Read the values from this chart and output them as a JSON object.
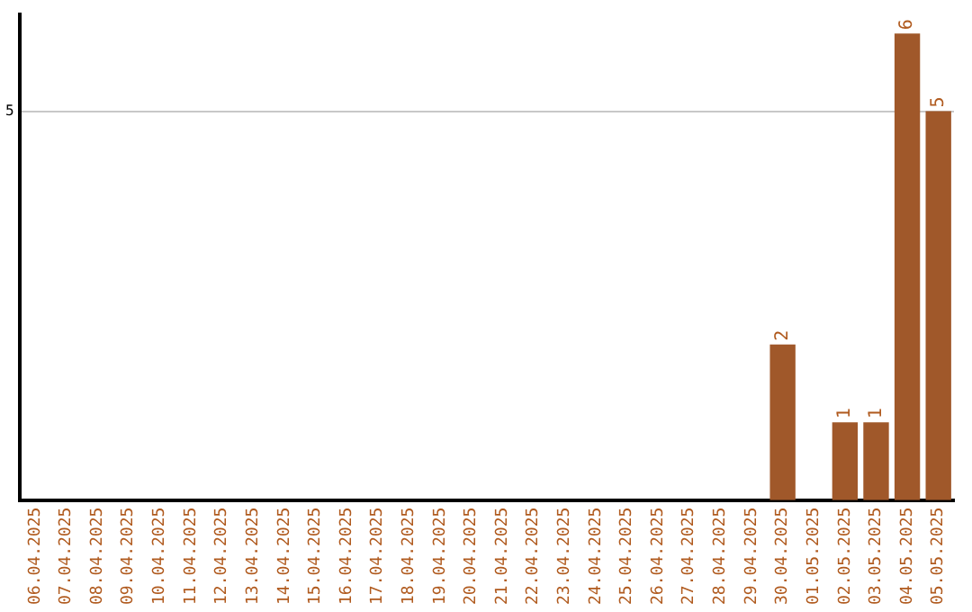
{
  "chart_data": {
    "type": "bar",
    "categories": [
      "06.04.2025",
      "07.04.2025",
      "08.04.2025",
      "09.04.2025",
      "10.04.2025",
      "11.04.2025",
      "12.04.2025",
      "13.04.2025",
      "14.04.2025",
      "15.04.2025",
      "16.04.2025",
      "17.04.2025",
      "18.04.2025",
      "19.04.2025",
      "20.04.2025",
      "21.04.2025",
      "22.04.2025",
      "23.04.2025",
      "24.04.2025",
      "25.04.2025",
      "26.04.2025",
      "27.04.2025",
      "28.04.2025",
      "29.04.2025",
      "30.04.2025",
      "01.05.2025",
      "02.05.2025",
      "03.05.2025",
      "04.05.2025",
      "05.05.2025"
    ],
    "values": [
      null,
      null,
      null,
      null,
      null,
      null,
      null,
      null,
      null,
      null,
      null,
      null,
      null,
      null,
      null,
      null,
      null,
      null,
      null,
      null,
      null,
      null,
      null,
      null,
      2,
      null,
      1,
      1,
      6,
      5
    ],
    "data_labels": true,
    "color": "#a0582a",
    "ylim": [
      0,
      6.25
    ],
    "yticks": [
      5
    ],
    "grid": "y",
    "legend": false
  }
}
